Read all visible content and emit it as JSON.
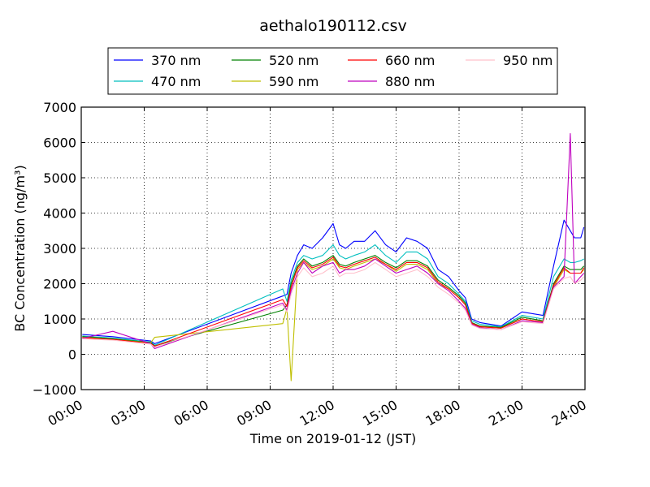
{
  "chart_data": {
    "type": "line",
    "title": "aethalo190112.csv",
    "xlabel": "Time on 2019-01-12 (JST)",
    "ylabel": "BC Concentration (ng/m³)",
    "ylim": [
      -1000,
      7000
    ],
    "xlim_hours": [
      0,
      24
    ],
    "x_tick_labels": [
      "00:00",
      "03:00",
      "06:00",
      "09:00",
      "12:00",
      "15:00",
      "18:00",
      "21:00",
      "24:00"
    ],
    "y_ticks": [
      -1000,
      0,
      1000,
      2000,
      3000,
      4000,
      5000,
      6000,
      7000
    ],
    "y_tick_labels": [
      "−1000",
      "0",
      "1000",
      "2000",
      "3000",
      "4000",
      "5000",
      "6000",
      "7000"
    ],
    "grid": true,
    "legend_position": "top-center",
    "x": [
      0.05,
      1.5,
      3.3,
      3.5,
      9.6,
      9.8,
      10.0,
      10.3,
      10.6,
      11.0,
      11.5,
      12.0,
      12.3,
      12.6,
      13.0,
      13.5,
      14.0,
      14.5,
      15.0,
      15.5,
      16.0,
      16.5,
      17.0,
      17.5,
      18.0,
      18.3,
      18.6,
      19.0,
      20.0,
      21.0,
      22.0,
      22.5,
      23.0,
      23.3,
      23.5,
      23.8,
      23.95
    ],
    "series": [
      {
        "name": "370 nm",
        "color": "#0000ff",
        "values": [
          560,
          500,
          380,
          300,
          1650,
          1700,
          2300,
          2800,
          3100,
          3000,
          3300,
          3700,
          3100,
          3000,
          3200,
          3200,
          3500,
          3100,
          2900,
          3300,
          3200,
          3000,
          2400,
          2200,
          1800,
          1600,
          1000,
          900,
          800,
          1200,
          1100,
          2500,
          3800,
          3500,
          3300,
          3300,
          3600
        ]
      },
      {
        "name": "470 nm",
        "color": "#00bfbf",
        "values": [
          520,
          460,
          350,
          260,
          1850,
          1500,
          2100,
          2600,
          2800,
          2700,
          2800,
          3100,
          2800,
          2700,
          2800,
          2900,
          3100,
          2800,
          2600,
          2900,
          2900,
          2700,
          2200,
          2000,
          1700,
          1500,
          950,
          850,
          780,
          1100,
          1000,
          2200,
          2700,
          2600,
          2600,
          2650,
          2700
        ]
      },
      {
        "name": "520 nm",
        "color": "#008000",
        "values": [
          500,
          440,
          330,
          240,
          1250,
          1400,
          2000,
          2500,
          2700,
          2500,
          2600,
          2800,
          2550,
          2500,
          2600,
          2700,
          2800,
          2600,
          2450,
          2650,
          2650,
          2500,
          2100,
          1900,
          1650,
          1450,
          900,
          800,
          760,
          1050,
          950,
          2000,
          2500,
          2400,
          2400,
          2400,
          2500
        ]
      },
      {
        "name": "590 nm",
        "color": "#bfbf00",
        "values": [
          480,
          420,
          320,
          480,
          870,
          1300,
          -750,
          2400,
          2600,
          2400,
          2500,
          2700,
          2450,
          2400,
          2500,
          2600,
          2700,
          2550,
          2350,
          2550,
          2550,
          2400,
          2000,
          1850,
          1600,
          1400,
          880,
          780,
          740,
          1000,
          920,
          1900,
          2400,
          2300,
          2300,
          2300,
          2400
        ]
      },
      {
        "name": "660 nm",
        "color": "#ff0000",
        "values": [
          470,
          420,
          310,
          230,
          1550,
          1350,
          1900,
          2450,
          2650,
          2450,
          2550,
          2750,
          2500,
          2450,
          2550,
          2650,
          2750,
          2550,
          2400,
          2600,
          2600,
          2450,
          2050,
          1850,
          1600,
          1400,
          880,
          780,
          740,
          1000,
          920,
          1950,
          2450,
          2300,
          2300,
          2300,
          2450
        ]
      },
      {
        "name": "880 nm",
        "color": "#bf00bf",
        "values": [
          450,
          650,
          300,
          160,
          1450,
          1250,
          1800,
          2300,
          2600,
          2300,
          2500,
          2600,
          2300,
          2400,
          2400,
          2500,
          2700,
          2500,
          2300,
          2400,
          2500,
          2300,
          2000,
          1800,
          1500,
          1300,
          850,
          750,
          700,
          950,
          900,
          1900,
          2200,
          6250,
          2000,
          2200,
          2300
        ]
      },
      {
        "name": "950 nm",
        "color": "#ffc0cb",
        "values": [
          440,
          400,
          290,
          200,
          1400,
          1200,
          1700,
          2200,
          2450,
          2200,
          2300,
          2500,
          2200,
          2300,
          2300,
          2400,
          2600,
          2400,
          2200,
          2300,
          2400,
          2200,
          1900,
          1700,
          1450,
          1250,
          830,
          730,
          700,
          920,
          870,
          1850,
          2150,
          2200,
          2000,
          2100,
          2200
        ]
      }
    ]
  }
}
